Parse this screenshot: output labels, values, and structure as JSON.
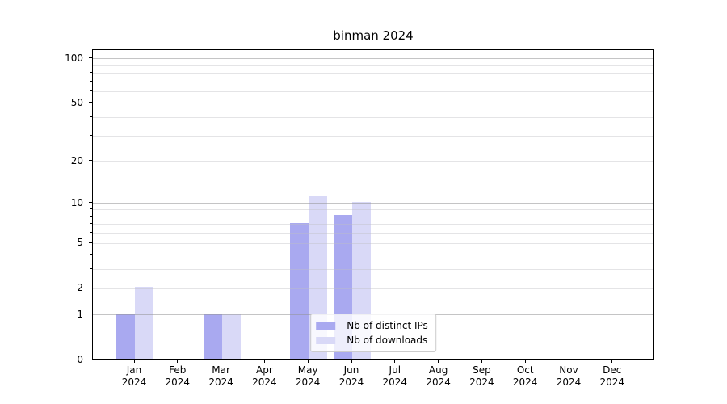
{
  "title": "binman 2024",
  "chart_data": {
    "type": "bar",
    "title": "binman 2024",
    "categories": [
      "Jan",
      "Feb",
      "Mar",
      "Apr",
      "May",
      "Jun",
      "Jul",
      "Aug",
      "Sep",
      "Oct",
      "Nov",
      "Dec"
    ],
    "category_year": "2024",
    "series": [
      {
        "name": "Nb of distinct IPs",
        "color": "#a9a9f0",
        "values": [
          1,
          0,
          1,
          0,
          7,
          8,
          0,
          0,
          0,
          0,
          0,
          0
        ]
      },
      {
        "name": "Nb of downloads",
        "color": "#d9d9f7",
        "values": [
          2,
          0,
          1,
          0,
          11,
          10,
          0,
          0,
          0,
          0,
          0,
          0
        ]
      }
    ],
    "yscale": "log1p",
    "ytick_labels": [
      0,
      1,
      2,
      5,
      10,
      20,
      50,
      100
    ],
    "major_grid_values": [
      1,
      10,
      100
    ],
    "minor_grid_values": [
      3,
      4,
      6,
      7,
      8,
      9,
      30,
      40,
      60,
      70,
      80,
      90
    ],
    "ylim": [
      0,
      114
    ],
    "grid": "both",
    "legend_position": "lower center",
    "colors": {
      "distinct_ips": "#a9a9f0",
      "downloads": "#d9d9f7",
      "major_grid": "#c9c9c9",
      "minor_grid": "#e6e6e8",
      "spine": "#000000"
    }
  }
}
